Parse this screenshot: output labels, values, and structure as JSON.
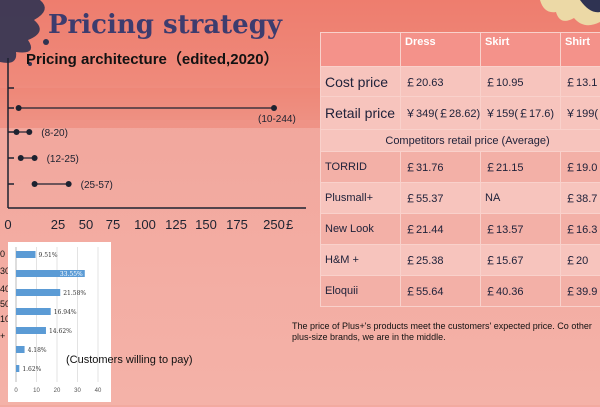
{
  "slide": {
    "title": "Pricing strategy",
    "subtitle": "Pricing architecture（edited,2020）"
  },
  "range_chart": {
    "x_ticks": [
      "0",
      "25",
      "50",
      "75",
      "100",
      "125",
      "150",
      "175",
      "250"
    ],
    "unit": "£",
    "ranges": [
      {
        "label": "(10-244)",
        "low": 10,
        "high": 244
      },
      {
        "label": "(8-20)",
        "low": 8,
        "high": 20
      },
      {
        "label": "(12-25)",
        "low": 12,
        "high": 25
      },
      {
        "label": "(25-57)",
        "low": 25,
        "high": 57
      }
    ]
  },
  "pricing_table": {
    "columns": [
      "",
      "Dress",
      "Skirt",
      "Shirt"
    ],
    "cost_price": {
      "label": "Cost price",
      "values": [
        "￡20.63",
        "￡10.95",
        "￡13.1"
      ]
    },
    "retail_price": {
      "label": "Retail price",
      "values": [
        "￥349(￡28.62)",
        "￥159(￡17.6)",
        "￥199(￡"
      ]
    },
    "competitors_header": "Competitors retail price (Average)",
    "competitors": [
      {
        "name": "TORRID",
        "values": [
          "￡31.76",
          "￡21.15",
          "￡19.0"
        ]
      },
      {
        "name": "Plusmall+",
        "values": [
          "￡55.37",
          "NA",
          "￡38.7"
        ]
      },
      {
        "name": "New Look",
        "values": [
          "￡21.44",
          "￡13.57",
          "￡16.3"
        ]
      },
      {
        "name": "H&M +",
        "values": [
          "￡25.38",
          "￡15.67",
          "￡20"
        ]
      },
      {
        "name": "Eloquii",
        "values": [
          "￡55.64",
          "￡40.36",
          "￡39.9"
        ]
      }
    ]
  },
  "note": "The price of Plus+'s products meet the customers' expected price. Co other plus-size brands, we are in the middle.",
  "survey": {
    "caption": "(Customers willing to pay)",
    "y_labels": [
      "0",
      "30",
      "40",
      "50",
      "100",
      "+"
    ],
    "x_ticks": [
      "0",
      "10",
      "20",
      "30",
      "40"
    ],
    "bar_labels": [
      "9.51%",
      "33.55%",
      "21.58%",
      "16.94%",
      "14.62%",
      "4.18%",
      "1.62%"
    ]
  },
  "chart_data": {
    "type": "bar",
    "orientation": "horizontal",
    "values": [
      9.51,
      33.55,
      21.58,
      16.94,
      14.62,
      4.18,
      1.62
    ],
    "xlim": [
      0,
      40
    ]
  },
  "colors": {
    "accent_bar": "#5b9bd5",
    "title": "#3d3c6e",
    "table_header": "#f4928a"
  }
}
